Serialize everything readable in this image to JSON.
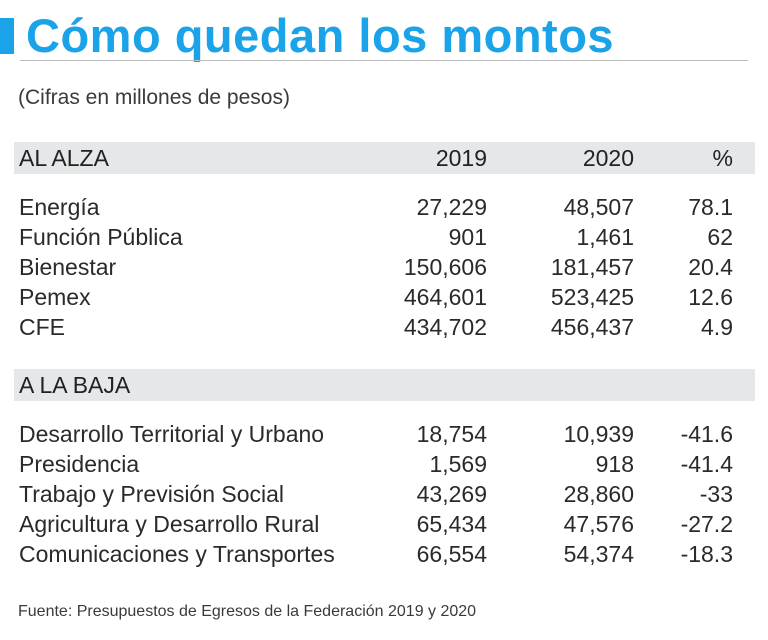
{
  "title": "Cómo quedan los montos",
  "subtitle": "(Cifras en millones de pesos)",
  "sections": [
    {
      "heading": "AL ALZA",
      "col_2019": "2019",
      "col_2020": "2020",
      "col_pct": "%",
      "rows": [
        {
          "label": "Energía",
          "v2019": "27,229",
          "v2020": "48,507",
          "pct": "78.1"
        },
        {
          "label": "Función Pública",
          "v2019": "901",
          "v2020": "1,461",
          "pct": "62"
        },
        {
          "label": "Bienestar",
          "v2019": "150,606",
          "v2020": "181,457",
          "pct": "20.4"
        },
        {
          "label": "Pemex",
          "v2019": "464,601",
          "v2020": "523,425",
          "pct": "12.6"
        },
        {
          "label": "CFE",
          "v2019": "434,702",
          "v2020": "456,437",
          "pct": "4.9"
        }
      ]
    },
    {
      "heading": "A LA BAJA",
      "rows": [
        {
          "label": "Desarrollo Territorial y Urbano",
          "v2019": "18,754",
          "v2020": "10,939",
          "pct": "-41.6"
        },
        {
          "label": "Presidencia",
          "v2019": "1,569",
          "v2020": "918",
          "pct": "-41.4"
        },
        {
          "label": "Trabajo y Previsión Social",
          "v2019": "43,269",
          "v2020": "28,860",
          "pct": "-33"
        },
        {
          "label": "Agricultura y Desarrollo Rural",
          "v2019": "65,434",
          "v2020": "47,576",
          "pct": "-27.2"
        },
        {
          "label": "Comunicaciones y Transportes",
          "v2019": "66,554",
          "v2020": "54,374",
          "pct": "-18.3"
        }
      ]
    }
  ],
  "source": "Fuente: Presupuestos de Egresos de la Federación 2019 y 2020"
}
